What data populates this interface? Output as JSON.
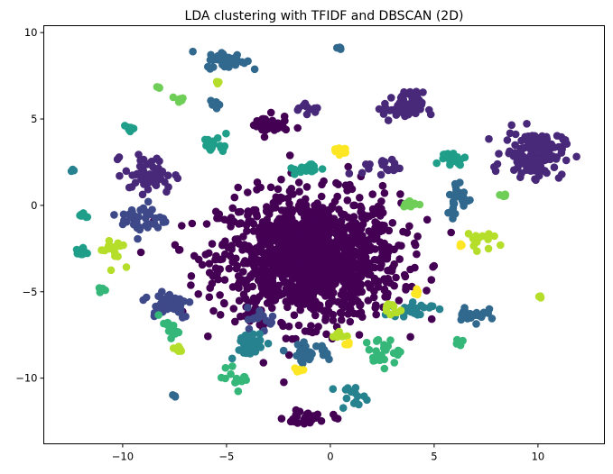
{
  "chart_data": {
    "type": "scatter",
    "title": "LDA clustering with TFIDF and DBSCAN (2D)",
    "xlabel": "",
    "ylabel": "",
    "xlim": [
      -13.8,
      13.2
    ],
    "ylim": [
      -13.8,
      10.4
    ],
    "x_ticks": [
      -10,
      -5,
      0,
      5,
      10
    ],
    "x_tick_labels": [
      "−10",
      "−5",
      "0",
      "5",
      "10"
    ],
    "y_ticks": [
      10,
      5,
      0,
      -5,
      -10
    ],
    "y_tick_labels": [
      "10",
      "5",
      "0",
      "−5",
      "−10"
    ],
    "grid": false,
    "legend": "none",
    "marker_colors": {
      "cluster_0": "#440154",
      "cluster_1": "#482878",
      "cluster_2": "#3e4989",
      "cluster_3": "#31688e",
      "cluster_4": "#26828e",
      "cluster_5": "#1f9e89",
      "cluster_6": "#35b779",
      "cluster_7": "#6ece58",
      "cluster_8": "#b5de2b",
      "cluster_9": "#fde725"
    },
    "clusters": [
      {
        "color": "#440154",
        "center": [
          -1.0,
          -3.0
        ],
        "spread": [
          3.6,
          3.0
        ],
        "count": 1300
      },
      {
        "color": "#440154",
        "center": [
          -3.0,
          4.6
        ],
        "spread": [
          0.8,
          0.5
        ],
        "count": 40
      },
      {
        "color": "#440154",
        "center": [
          -1.0,
          -12.3
        ],
        "spread": [
          1.0,
          0.4
        ],
        "count": 30
      },
      {
        "color": "#482878",
        "center": [
          9.8,
          3.0
        ],
        "spread": [
          1.2,
          1.1
        ],
        "count": 140
      },
      {
        "color": "#482878",
        "center": [
          3.5,
          5.7
        ],
        "spread": [
          0.8,
          0.7
        ],
        "count": 60
      },
      {
        "color": "#482878",
        "center": [
          -8.7,
          1.8
        ],
        "spread": [
          1.0,
          0.9
        ],
        "count": 60
      },
      {
        "color": "#482878",
        "center": [
          2.5,
          2.2
        ],
        "spread": [
          0.8,
          0.4
        ],
        "count": 20
      },
      {
        "color": "#482878",
        "center": [
          -1.0,
          5.7
        ],
        "spread": [
          0.6,
          0.3
        ],
        "count": 12
      },
      {
        "color": "#3e4989",
        "center": [
          -9.0,
          -0.8
        ],
        "spread": [
          0.9,
          0.8
        ],
        "count": 40
      },
      {
        "color": "#3e4989",
        "center": [
          -7.8,
          -5.7
        ],
        "spread": [
          1.0,
          0.7
        ],
        "count": 50
      },
      {
        "color": "#3e4989",
        "center": [
          -3.3,
          -6.5
        ],
        "spread": [
          0.6,
          0.5
        ],
        "count": 15
      },
      {
        "color": "#31688e",
        "center": [
          -5.0,
          8.4
        ],
        "spread": [
          0.8,
          0.4
        ],
        "count": 50
      },
      {
        "color": "#31688e",
        "center": [
          6.2,
          0.4
        ],
        "spread": [
          0.5,
          0.9
        ],
        "count": 30
      },
      {
        "color": "#31688e",
        "center": [
          6.8,
          -6.3
        ],
        "spread": [
          0.6,
          0.5
        ],
        "count": 25
      },
      {
        "color": "#31688e",
        "center": [
          -1.0,
          -8.5
        ],
        "spread": [
          0.9,
          0.4
        ],
        "count": 30
      },
      {
        "color": "#31688e",
        "center": [
          -5.5,
          5.8
        ],
        "spread": [
          0.3,
          0.2
        ],
        "count": 8
      },
      {
        "color": "#31688e",
        "center": [
          0.4,
          9.1
        ],
        "spread": [
          0.1,
          0.1
        ],
        "count": 4
      },
      {
        "color": "#31688e",
        "center": [
          -7.5,
          -11.0
        ],
        "spread": [
          0.1,
          0.1
        ],
        "count": 3
      },
      {
        "color": "#26828e",
        "center": [
          -4.0,
          -8.0
        ],
        "spread": [
          0.8,
          0.6
        ],
        "count": 35
      },
      {
        "color": "#26828e",
        "center": [
          4.0,
          -6.0
        ],
        "spread": [
          0.8,
          0.4
        ],
        "count": 25
      },
      {
        "color": "#26828e",
        "center": [
          1.0,
          -11.0
        ],
        "spread": [
          0.6,
          0.4
        ],
        "count": 15
      },
      {
        "color": "#26828e",
        "center": [
          -12.4,
          2.0
        ],
        "spread": [
          0.1,
          0.1
        ],
        "count": 3
      },
      {
        "color": "#1f9e89",
        "center": [
          -5.5,
          3.5
        ],
        "spread": [
          0.5,
          0.4
        ],
        "count": 20
      },
      {
        "color": "#1f9e89",
        "center": [
          5.8,
          2.7
        ],
        "spread": [
          0.6,
          0.4
        ],
        "count": 20
      },
      {
        "color": "#1f9e89",
        "center": [
          -1.0,
          2.1
        ],
        "spread": [
          0.6,
          0.3
        ],
        "count": 18
      },
      {
        "color": "#1f9e89",
        "center": [
          -12.0,
          -2.7
        ],
        "spread": [
          0.3,
          0.2
        ],
        "count": 10
      },
      {
        "color": "#1f9e89",
        "center": [
          -9.7,
          4.5
        ],
        "spread": [
          0.2,
          0.2
        ],
        "count": 8
      },
      {
        "color": "#1f9e89",
        "center": [
          -12.0,
          -0.6
        ],
        "spread": [
          0.2,
          0.2
        ],
        "count": 6
      },
      {
        "color": "#35b779",
        "center": [
          2.5,
          -8.5
        ],
        "spread": [
          0.7,
          0.7
        ],
        "count": 25
      },
      {
        "color": "#35b779",
        "center": [
          -7.8,
          -7.2
        ],
        "spread": [
          0.4,
          0.4
        ],
        "count": 15
      },
      {
        "color": "#35b779",
        "center": [
          -4.5,
          -10.0
        ],
        "spread": [
          0.6,
          0.5
        ],
        "count": 15
      },
      {
        "color": "#35b779",
        "center": [
          6.3,
          -7.9
        ],
        "spread": [
          0.2,
          0.2
        ],
        "count": 5
      },
      {
        "color": "#35b779",
        "center": [
          -11.0,
          -5.0
        ],
        "spread": [
          0.2,
          0.2
        ],
        "count": 5
      },
      {
        "color": "#6ece58",
        "center": [
          3.8,
          0.1
        ],
        "spread": [
          0.3,
          0.2
        ],
        "count": 10
      },
      {
        "color": "#6ece58",
        "center": [
          -7.3,
          6.1
        ],
        "spread": [
          0.3,
          0.2
        ],
        "count": 8
      },
      {
        "color": "#6ece58",
        "center": [
          -8.3,
          6.8
        ],
        "spread": [
          0.1,
          0.1
        ],
        "count": 4
      },
      {
        "color": "#6ece58",
        "center": [
          8.4,
          0.6
        ],
        "spread": [
          0.2,
          0.1
        ],
        "count": 5
      },
      {
        "color": "#b5de2b",
        "center": [
          -10.5,
          -2.5
        ],
        "spread": [
          0.5,
          0.7
        ],
        "count": 18
      },
      {
        "color": "#b5de2b",
        "center": [
          7.0,
          -2.0
        ],
        "spread": [
          0.6,
          0.5
        ],
        "count": 15
      },
      {
        "color": "#b5de2b",
        "center": [
          2.8,
          -6.0
        ],
        "spread": [
          0.5,
          0.4
        ],
        "count": 10
      },
      {
        "color": "#b5de2b",
        "center": [
          -5.5,
          7.1
        ],
        "spread": [
          0.2,
          0.1
        ],
        "count": 4
      },
      {
        "color": "#b5de2b",
        "center": [
          0.5,
          -7.5
        ],
        "spread": [
          0.3,
          0.2
        ],
        "count": 8
      },
      {
        "color": "#b5de2b",
        "center": [
          10.1,
          -5.3
        ],
        "spread": [
          0.1,
          0.1
        ],
        "count": 3
      },
      {
        "color": "#b5de2b",
        "center": [
          -7.3,
          -8.3
        ],
        "spread": [
          0.3,
          0.2
        ],
        "count": 6
      },
      {
        "color": "#fde725",
        "center": [
          0.5,
          3.2
        ],
        "spread": [
          0.3,
          0.2
        ],
        "count": 12
      },
      {
        "color": "#fde725",
        "center": [
          4.2,
          -5.1
        ],
        "spread": [
          0.1,
          0.2
        ],
        "count": 6
      },
      {
        "color": "#fde725",
        "center": [
          -1.5,
          -9.5
        ],
        "spread": [
          0.2,
          0.1
        ],
        "count": 5
      },
      {
        "color": "#fde725",
        "center": [
          6.3,
          -2.3
        ],
        "spread": [
          0.1,
          0.1
        ],
        "count": 4
      },
      {
        "color": "#fde725",
        "center": [
          0.8,
          -8.0
        ],
        "spread": [
          0.2,
          0.1
        ],
        "count": 4
      }
    ]
  }
}
